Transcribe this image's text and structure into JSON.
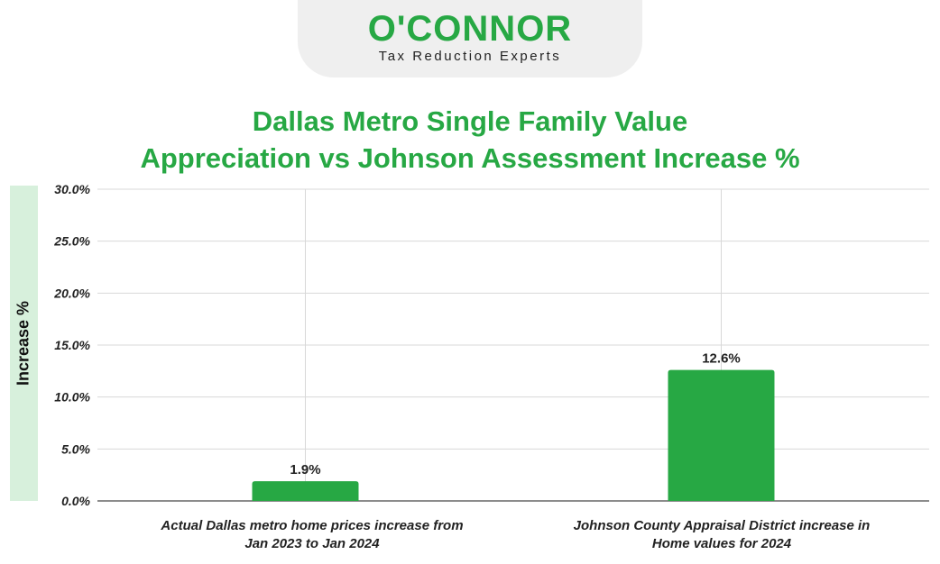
{
  "logo": {
    "name": "O'CONNOR",
    "tagline": "Tax Reduction Experts"
  },
  "colors": {
    "accent": "#27a844",
    "bar": "#27a844",
    "grid": "#d8d8d8",
    "axis_band": "#d7f0dc"
  },
  "chart_data": {
    "type": "bar",
    "title_lines": [
      "Dallas Metro Single Family Value",
      "Appreciation vs Johnson Assessment Increase %"
    ],
    "ylabel": "Increase %",
    "categories": [
      [
        "Actual Dallas metro home prices increase from",
        "Jan 2023 to Jan 2024"
      ],
      [
        "Johnson County Appraisal District increase in",
        "Home values for 2024"
      ]
    ],
    "values": [
      1.9,
      12.6
    ],
    "value_labels": [
      "1.9%",
      "12.6%"
    ],
    "ylim": [
      0,
      30
    ],
    "yticks": [
      0,
      5,
      10,
      15,
      20,
      25,
      30
    ],
    "ytick_labels": [
      "0.0%",
      "5.0%",
      "10.0%",
      "15.0%",
      "20.0%",
      "25.0%",
      "30.0%"
    ],
    "grid": true,
    "legend": "none"
  }
}
